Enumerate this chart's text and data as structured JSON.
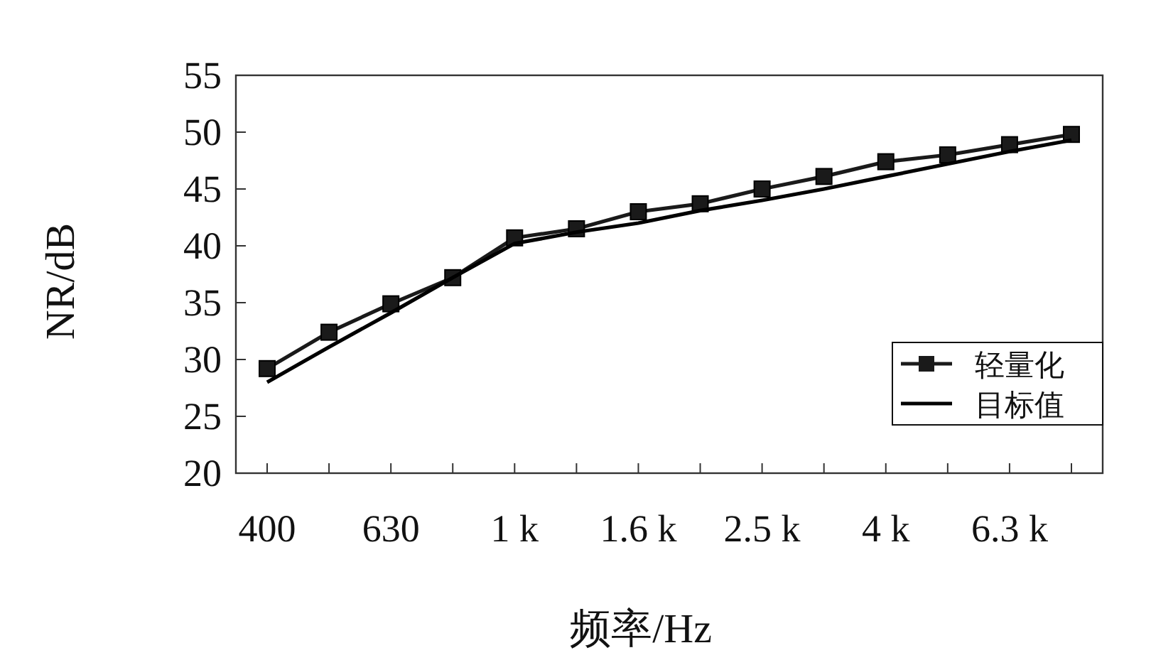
{
  "chart_data": {
    "type": "line",
    "xlabel": "频率/Hz",
    "ylabel": "NR/dB",
    "categories": [
      "400",
      null,
      "630",
      null,
      "1 k",
      null,
      "1.6 k",
      null,
      "2.5 k",
      null,
      "4 k",
      null,
      "6.3 k",
      null
    ],
    "series": [
      {
        "name": "轻量化",
        "color": "#1a1a1a",
        "marker": "square",
        "values": [
          29.2,
          32.4,
          34.9,
          37.2,
          40.7,
          41.5,
          43.0,
          43.7,
          45.0,
          46.1,
          47.4,
          48.0,
          48.9,
          49.8
        ]
      },
      {
        "name": "目标值",
        "color": "#000000",
        "marker": "none",
        "values": [
          28.0,
          31.1,
          34.1,
          37.2,
          40.2,
          41.2,
          42.0,
          43.1,
          44.0,
          45.0,
          46.1,
          47.2,
          48.3,
          49.3
        ]
      }
    ],
    "ylim": [
      20,
      55
    ],
    "yticks": [
      20,
      25,
      30,
      35,
      40,
      45,
      50,
      55
    ],
    "grid": false,
    "legend": "right"
  }
}
